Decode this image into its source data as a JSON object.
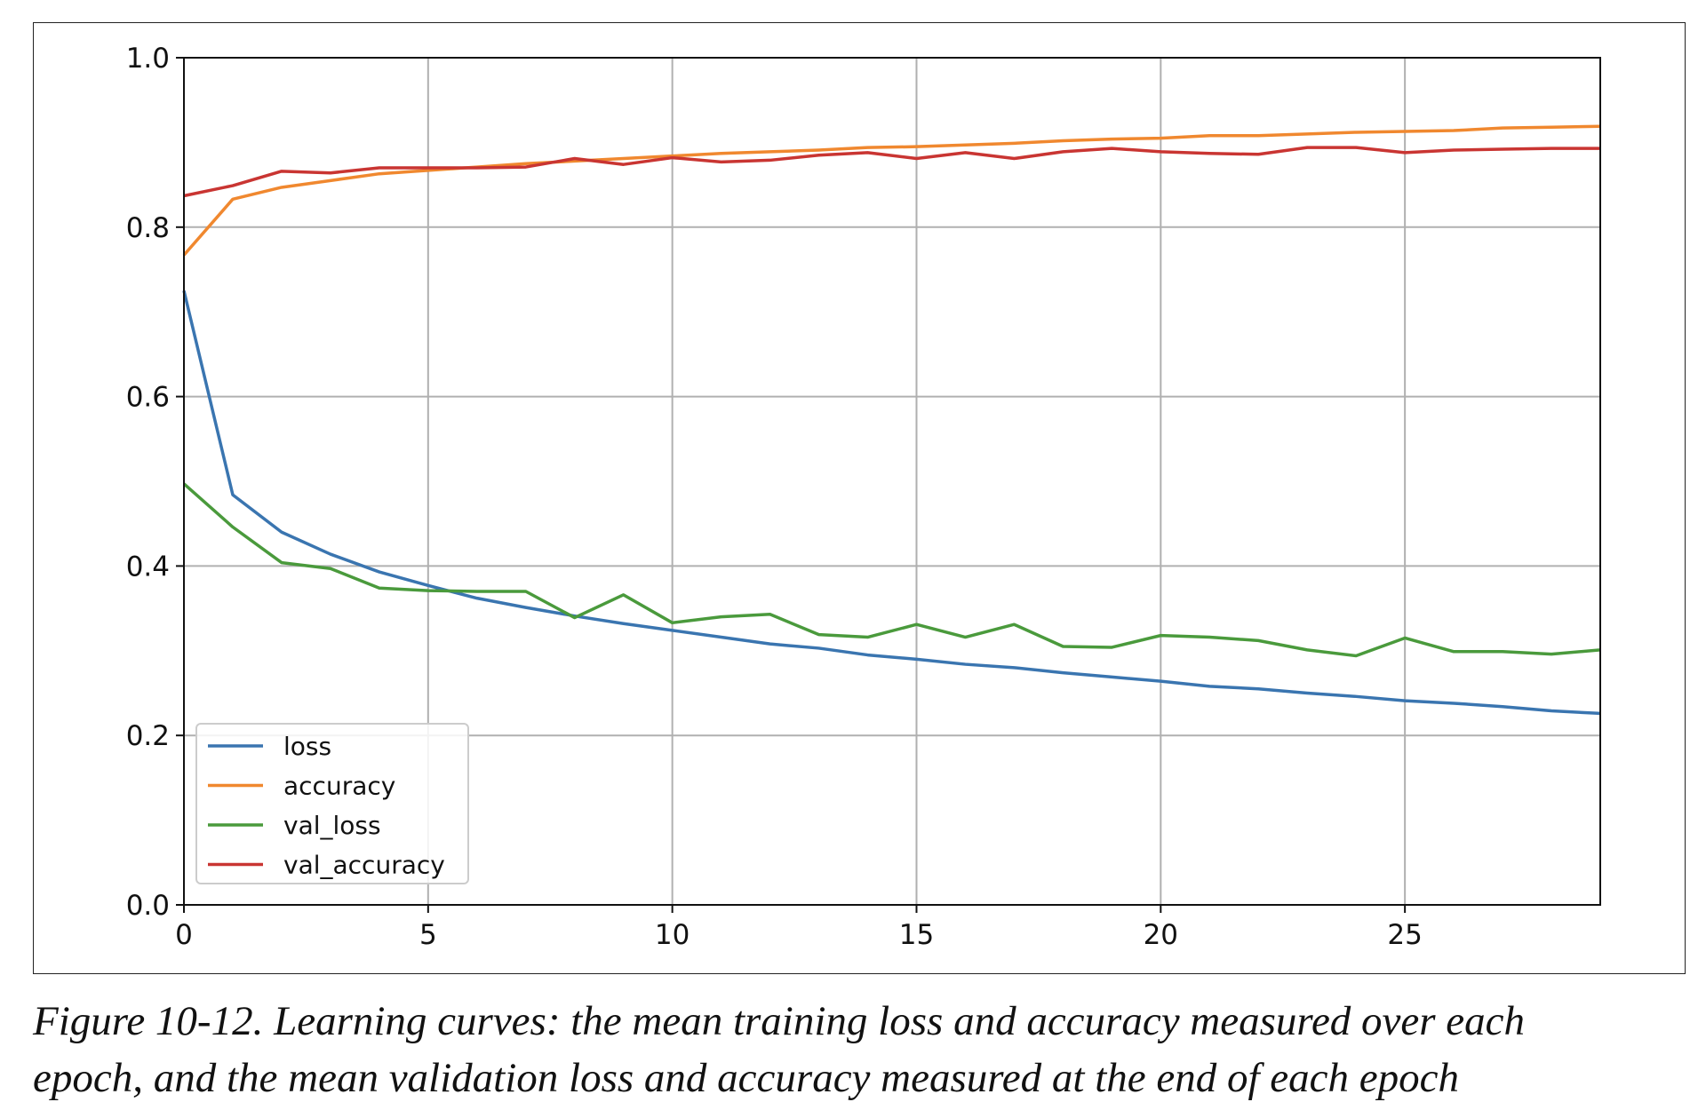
{
  "chart_data": {
    "type": "line",
    "title": "",
    "xlabel": "",
    "ylabel": "",
    "xlim": [
      0,
      29
    ],
    "ylim": [
      0.0,
      1.0
    ],
    "xticks": [
      "0",
      "5",
      "10",
      "15",
      "20",
      "25"
    ],
    "yticks": [
      "0.0",
      "0.2",
      "0.4",
      "0.6",
      "0.8",
      "1.0"
    ],
    "grid": true,
    "legend_placement": "lower-left",
    "x": [
      0,
      1,
      2,
      3,
      4,
      5,
      6,
      7,
      8,
      9,
      10,
      11,
      12,
      13,
      14,
      15,
      16,
      17,
      18,
      19,
      20,
      21,
      22,
      23,
      24,
      25,
      26,
      27,
      28,
      29
    ],
    "series": [
      {
        "name": "loss",
        "color": "#3a75b0",
        "values": [
          0.725,
          0.484,
          0.44,
          0.414,
          0.393,
          0.377,
          0.362,
          0.351,
          0.341,
          0.332,
          0.324,
          0.316,
          0.308,
          0.303,
          0.295,
          0.29,
          0.284,
          0.28,
          0.274,
          0.269,
          0.264,
          0.258,
          0.255,
          0.25,
          0.246,
          0.241,
          0.238,
          0.234,
          0.229,
          0.226
        ]
      },
      {
        "name": "accuracy",
        "color": "#f0882f",
        "values": [
          0.767,
          0.833,
          0.847,
          0.855,
          0.863,
          0.867,
          0.871,
          0.875,
          0.878,
          0.881,
          0.884,
          0.887,
          0.889,
          0.891,
          0.894,
          0.895,
          0.897,
          0.899,
          0.902,
          0.904,
          0.905,
          0.908,
          0.908,
          0.91,
          0.912,
          0.913,
          0.914,
          0.917,
          0.918,
          0.919
        ]
      },
      {
        "name": "val_loss",
        "color": "#4a9a3c",
        "values": [
          0.497,
          0.446,
          0.404,
          0.397,
          0.374,
          0.371,
          0.37,
          0.37,
          0.339,
          0.366,
          0.333,
          0.34,
          0.343,
          0.319,
          0.316,
          0.331,
          0.316,
          0.331,
          0.305,
          0.304,
          0.318,
          0.316,
          0.312,
          0.301,
          0.294,
          0.315,
          0.299,
          0.299,
          0.296,
          0.301
        ]
      },
      {
        "name": "val_accuracy",
        "color": "#c93532",
        "values": [
          0.837,
          0.849,
          0.866,
          0.864,
          0.87,
          0.87,
          0.87,
          0.871,
          0.881,
          0.874,
          0.882,
          0.877,
          0.879,
          0.885,
          0.888,
          0.881,
          0.888,
          0.881,
          0.889,
          0.893,
          0.889,
          0.887,
          0.886,
          0.894,
          0.894,
          0.888,
          0.891,
          0.892,
          0.893,
          0.893
        ]
      }
    ]
  },
  "caption": {
    "line1": "Figure 10-12. Learning curves: the mean training loss and accuracy measured over each",
    "line2": "epoch, and the mean validation loss and accuracy measured at the end of each epoch"
  }
}
